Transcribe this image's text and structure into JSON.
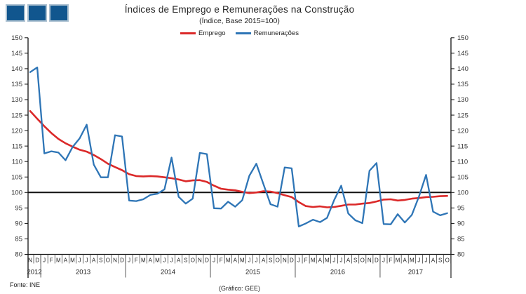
{
  "logo": {
    "squares": 3,
    "fill": "#11568E",
    "border": "#ABC0D0"
  },
  "header": {
    "title": "Índices de Emprego e Remunerações na Construção",
    "subtitle": "(Índice, Base 2015=100)"
  },
  "legend": [
    {
      "label": "Emprego",
      "color": "#DB2929"
    },
    {
      "label": "Remunerações",
      "color": "#2E75B6"
    }
  ],
  "footer": {
    "source": "Fonte: INE",
    "credit": "(Gráfico: GEE)"
  },
  "chart_data": {
    "type": "line",
    "title": "Índices de Emprego e Remunerações na Construção",
    "subtitle": "(Índice, Base 2015=100)",
    "y_axis": {
      "min": 80,
      "max": 150,
      "step": 5,
      "shown_both_sides": true
    },
    "baseline": 100,
    "grid": "off",
    "legend_position": "top",
    "months": [
      "N",
      "D",
      "J",
      "F",
      "M",
      "A",
      "M",
      "J",
      "J",
      "A",
      "S",
      "O",
      "N",
      "D",
      "J",
      "F",
      "M",
      "A",
      "M",
      "J",
      "J",
      "A",
      "S",
      "O",
      "N",
      "D",
      "J",
      "F",
      "M",
      "A",
      "M",
      "J",
      "J",
      "A",
      "S",
      "O",
      "N",
      "D",
      "J",
      "F",
      "M",
      "A",
      "M",
      "J",
      "J",
      "A",
      "S",
      "O",
      "N",
      "D",
      "J",
      "F",
      "M",
      "A",
      "M",
      "J",
      "J",
      "A",
      "S",
      "O"
    ],
    "years": [
      {
        "label": "2012",
        "months": 2
      },
      {
        "label": "2013",
        "months": 12
      },
      {
        "label": "2014",
        "months": 12
      },
      {
        "label": "2015",
        "months": 12
      },
      {
        "label": "2016",
        "months": 12
      },
      {
        "label": "2017",
        "months": 10
      }
    ],
    "x_range_note": "Nov 2012 - Oct 2017, monthly",
    "series": [
      {
        "name": "Emprego",
        "color": "#DB2929",
        "values": [
          126.3,
          123.8,
          121.4,
          119.2,
          117.3,
          115.9,
          114.8,
          113.8,
          113.2,
          112.1,
          110.8,
          109.3,
          108.2,
          107.2,
          105.9,
          105.3,
          105.2,
          105.3,
          105.2,
          104.9,
          104.6,
          104.2,
          103.6,
          103.9,
          104.0,
          103.4,
          102.2,
          101.2,
          100.9,
          100.7,
          100.2,
          99.8,
          100.0,
          100.4,
          100.3,
          99.8,
          99.1,
          98.5,
          96.9,
          95.6,
          95.3,
          95.5,
          95.2,
          95.3,
          95.7,
          96.1,
          96.1,
          96.4,
          96.6,
          97.1,
          97.7,
          97.8,
          97.4,
          97.6,
          98.0,
          98.2,
          98.5,
          98.6,
          98.8,
          98.9
        ]
      },
      {
        "name": "Remunerações",
        "color": "#2E75B6",
        "values": [
          138.9,
          140.4,
          112.6,
          113.3,
          112.9,
          110.4,
          114.7,
          117.5,
          121.9,
          109.0,
          104.9,
          104.9,
          118.5,
          118.1,
          97.4,
          97.2,
          97.8,
          99.2,
          99.6,
          101.0,
          111.3,
          98.6,
          96.4,
          98.0,
          112.8,
          112.4,
          94.9,
          94.8,
          97.0,
          95.4,
          97.5,
          105.4,
          109.3,
          102.7,
          96.2,
          95.4,
          108.1,
          107.8,
          89.0,
          90.0,
          91.2,
          90.4,
          91.8,
          97.5,
          102.2,
          93.2,
          91.0,
          90.1,
          107.0,
          109.5,
          89.8,
          89.7,
          93.0,
          90.3,
          92.8,
          98.7,
          105.7,
          93.8,
          92.6,
          93.3
        ]
      }
    ]
  }
}
